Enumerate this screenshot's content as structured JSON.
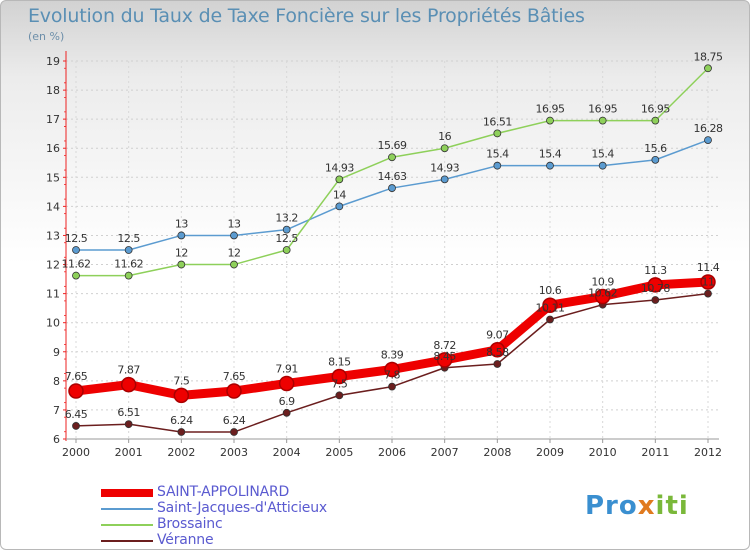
{
  "title": "Evolution du Taux de Taxe Foncière sur les Propriétés Bâties",
  "unit_label": "(en %)",
  "brand": "Proxiti",
  "chart_data": {
    "type": "line",
    "x": [
      "2000",
      "2001",
      "2002",
      "2003",
      "2004",
      "2005",
      "2006",
      "2007",
      "2008",
      "2009",
      "2010",
      "2011",
      "2012"
    ],
    "ylim": [
      6,
      19
    ],
    "yticks": [
      6,
      7,
      8,
      9,
      10,
      11,
      12,
      13,
      14,
      15,
      16,
      17,
      18,
      19
    ],
    "grid": true,
    "legend_position": "bottom-left",
    "series": [
      {
        "name": "SAINT-APPOLINARD",
        "color": "#ee0000",
        "labels": [
          "7.65",
          "7.87",
          "7.5",
          "7.65",
          "7.91",
          "8.15",
          "8.39",
          "8.72",
          "9.07",
          "10.6",
          "10.9",
          "11.3",
          "11.4"
        ],
        "values": [
          7.65,
          7.87,
          7.5,
          7.65,
          7.91,
          8.15,
          8.39,
          8.72,
          9.07,
          10.6,
          10.9,
          11.3,
          11.4
        ]
      },
      {
        "name": "Saint-Jacques-d'Atticieux",
        "color": "#5b9bd0",
        "labels": [
          "12.5",
          "12.5",
          "13",
          "13",
          "13.2",
          "14",
          "14.63",
          "14.93",
          "15.4",
          "15.4",
          "15.4",
          "15.6",
          "16.28"
        ],
        "values": [
          12.5,
          12.5,
          13,
          13,
          13.2,
          14,
          14.63,
          14.93,
          15.4,
          15.4,
          15.4,
          15.6,
          16.28
        ]
      },
      {
        "name": "Brossainc",
        "color": "#8ed05a",
        "labels": [
          "11.62",
          "11.62",
          "12",
          "12",
          "12.5",
          "14.93",
          "15.69",
          "16",
          "16.51",
          "16.95",
          "16.95",
          "16.95",
          "18.75"
        ],
        "values": [
          11.62,
          11.62,
          12,
          12,
          12.5,
          14.93,
          15.69,
          16,
          16.51,
          16.95,
          16.95,
          16.95,
          18.75
        ]
      },
      {
        "name": "Véranne",
        "color": "#6b1e1e",
        "labels": [
          "6.45",
          "6.51",
          "6.24",
          "6.24",
          "6.9",
          "7.5",
          "7.8",
          "8.45",
          "8.58",
          "10.11",
          "10.62",
          "10.78",
          "11"
        ],
        "values": [
          6.45,
          6.51,
          6.24,
          6.24,
          6.9,
          7.5,
          7.8,
          8.45,
          8.58,
          10.11,
          10.62,
          10.78,
          11
        ]
      }
    ]
  }
}
